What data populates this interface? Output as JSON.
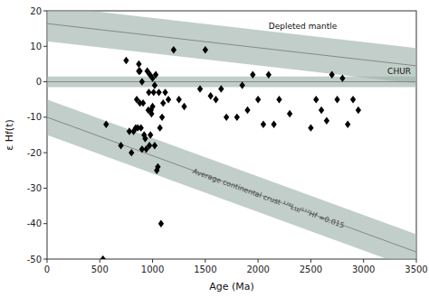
{
  "chart_data": {
    "type": "scatter",
    "xlabel": "Age (Ma)",
    "ylabel": "ε Hf(t)",
    "xlim": [
      0,
      3500
    ],
    "ylim": [
      -50,
      20
    ],
    "xticks": [
      0,
      500,
      1000,
      1500,
      2000,
      2500,
      3000,
      3500
    ],
    "yticks": [
      -50,
      -40,
      -30,
      -20,
      -10,
      0,
      10,
      20
    ],
    "series": [
      {
        "type": "scatter",
        "color": "black",
        "marker": "diamond",
        "x": [
          530,
          560,
          700,
          750,
          780,
          800,
          820,
          840,
          850,
          860,
          870,
          870,
          880,
          880,
          890,
          900,
          900,
          910,
          920,
          930,
          940,
          950,
          960,
          965,
          970,
          975,
          980,
          985,
          990,
          1000,
          1000,
          1010,
          1020,
          1020,
          1030,
          1040,
          1050,
          1060,
          1070,
          1080,
          1090,
          1100,
          1120,
          1150,
          1200,
          1250,
          1300,
          1450,
          1500,
          1550,
          1600,
          1650,
          1700,
          1800,
          1850,
          1900,
          1950,
          2000,
          2050,
          2100,
          2150,
          2200,
          2300,
          2500,
          2550,
          2600,
          2650,
          2700,
          2750,
          2800,
          2850,
          2900,
          2950
        ],
        "values": [
          -50,
          -12,
          -18,
          6,
          -14,
          -20,
          -14,
          -13,
          -5,
          -13,
          5,
          3,
          3,
          -6,
          -13,
          -19,
          0,
          -6,
          -15,
          -16,
          -19,
          3,
          -8,
          -3,
          -18,
          2,
          -15,
          -8,
          -9,
          1,
          -7,
          -3,
          -18,
          -1,
          2,
          -25,
          -24,
          -3,
          -13,
          -40,
          -10,
          -6,
          -3,
          -5,
          9,
          -5,
          -7,
          -2,
          9,
          -4,
          -5,
          -2,
          -10,
          -10,
          -1,
          -8,
          2,
          -5,
          -12,
          2,
          -12,
          -5,
          -9,
          -13,
          -5,
          -8,
          -11,
          2,
          -5,
          1,
          -12,
          -5,
          -8
        ]
      },
      {
        "type": "line",
        "label": "Depleted mantle",
        "color": "#888888",
        "x": [
          0,
          3500
        ],
        "values": [
          16.4,
          4.5
        ],
        "band_half": 5
      },
      {
        "type": "hline",
        "label": "CHUR",
        "color": "#888888",
        "values": [
          0
        ],
        "band_half": 1.5
      },
      {
        "type": "line",
        "label": "Average continental crust ¹⁷⁶Lu/¹⁷⁷Hf =0.015",
        "color": "#888888",
        "x": [
          0,
          3500
        ],
        "values": [
          -10,
          -48
        ],
        "band_half": 5
      }
    ]
  }
}
